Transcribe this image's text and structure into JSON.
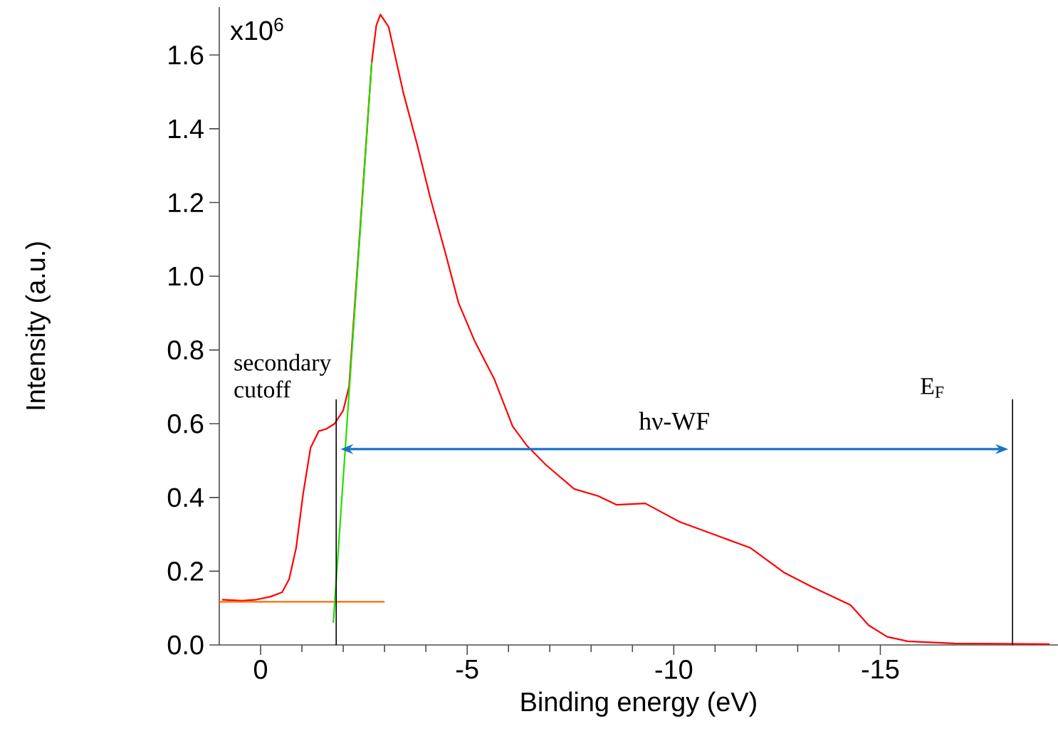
{
  "chart_data": {
    "type": "line",
    "xlabel": "Binding energy (eV)",
    "ylabel": "Intensity (a.u.)",
    "xlim": [
      1,
      -19.3
    ],
    "ylim": [
      0,
      1.73
    ],
    "xticks": [
      0,
      -5,
      -10,
      -15
    ],
    "yticks": [
      {
        "value": 0,
        "label": "0.0"
      },
      {
        "value": 0.2,
        "label": "0.2"
      },
      {
        "value": 0.4,
        "label": "0.4"
      },
      {
        "value": 0.6,
        "label": "0.6"
      },
      {
        "value": 0.8,
        "label": "0.8"
      },
      {
        "value": 1.0,
        "label": "1.0"
      },
      {
        "value": 1.2,
        "label": "1.2"
      },
      {
        "value": 1.4,
        "label": "1.4"
      },
      {
        "value": 1.6,
        "label": "1.6"
      }
    ],
    "grid": false,
    "marker": "none",
    "line_style": "solid",
    "series": [
      {
        "color": "#ff0000",
        "x": [
          0.93,
          0.45,
          0.1,
          -0.24,
          -0.52,
          -0.69,
          -0.86,
          -1.03,
          -1.21,
          -1.41,
          -1.59,
          -1.79,
          -2.0,
          -2.14,
          -2.4,
          -2.69,
          -2.8,
          -2.9,
          -3.1,
          -3.45,
          -3.79,
          -4.1,
          -4.48,
          -4.79,
          -5.17,
          -5.66,
          -6.1,
          -6.45,
          -6.9,
          -7.59,
          -8.17,
          -8.62,
          -9.31,
          -10.14,
          -11.28,
          -11.86,
          -12.66,
          -13.34,
          -14.28,
          -14.72,
          -15.17,
          -15.66,
          -16.8,
          -19.1
        ],
        "values": [
          0.123,
          0.12,
          0.123,
          0.131,
          0.143,
          0.178,
          0.263,
          0.41,
          0.535,
          0.58,
          0.586,
          0.6,
          0.636,
          0.7,
          null,
          1.58,
          1.68,
          1.71,
          1.676,
          1.5,
          1.357,
          1.216,
          1.06,
          0.928,
          0.827,
          0.72,
          0.593,
          0.54,
          0.489,
          0.423,
          0.404,
          0.38,
          0.384,
          0.334,
          0.287,
          0.263,
          0.197,
          0.158,
          0.108,
          0.053,
          0.022,
          0.01,
          0.004,
          0.002
        ]
      },
      {
        "color": "#ff6a00",
        "x": [
          1.0,
          -3.0
        ],
        "values": [
          0.117,
          0.117
        ]
      },
      {
        "color": "#22e000",
        "x": [
          -1.76,
          -2.69
        ],
        "values": [
          0.06,
          1.58
        ]
      }
    ],
    "ref_lines": [
      {
        "axis": "x",
        "value": -1.83,
        "label": "secondary cutoff",
        "color": "#000000"
      },
      {
        "axis": "x",
        "value": -18.2,
        "label": "E$_{F}$",
        "color": "#000000"
      }
    ],
    "annotations": [
      "hν-WF",
      "x10$^{6}$"
    ]
  }
}
